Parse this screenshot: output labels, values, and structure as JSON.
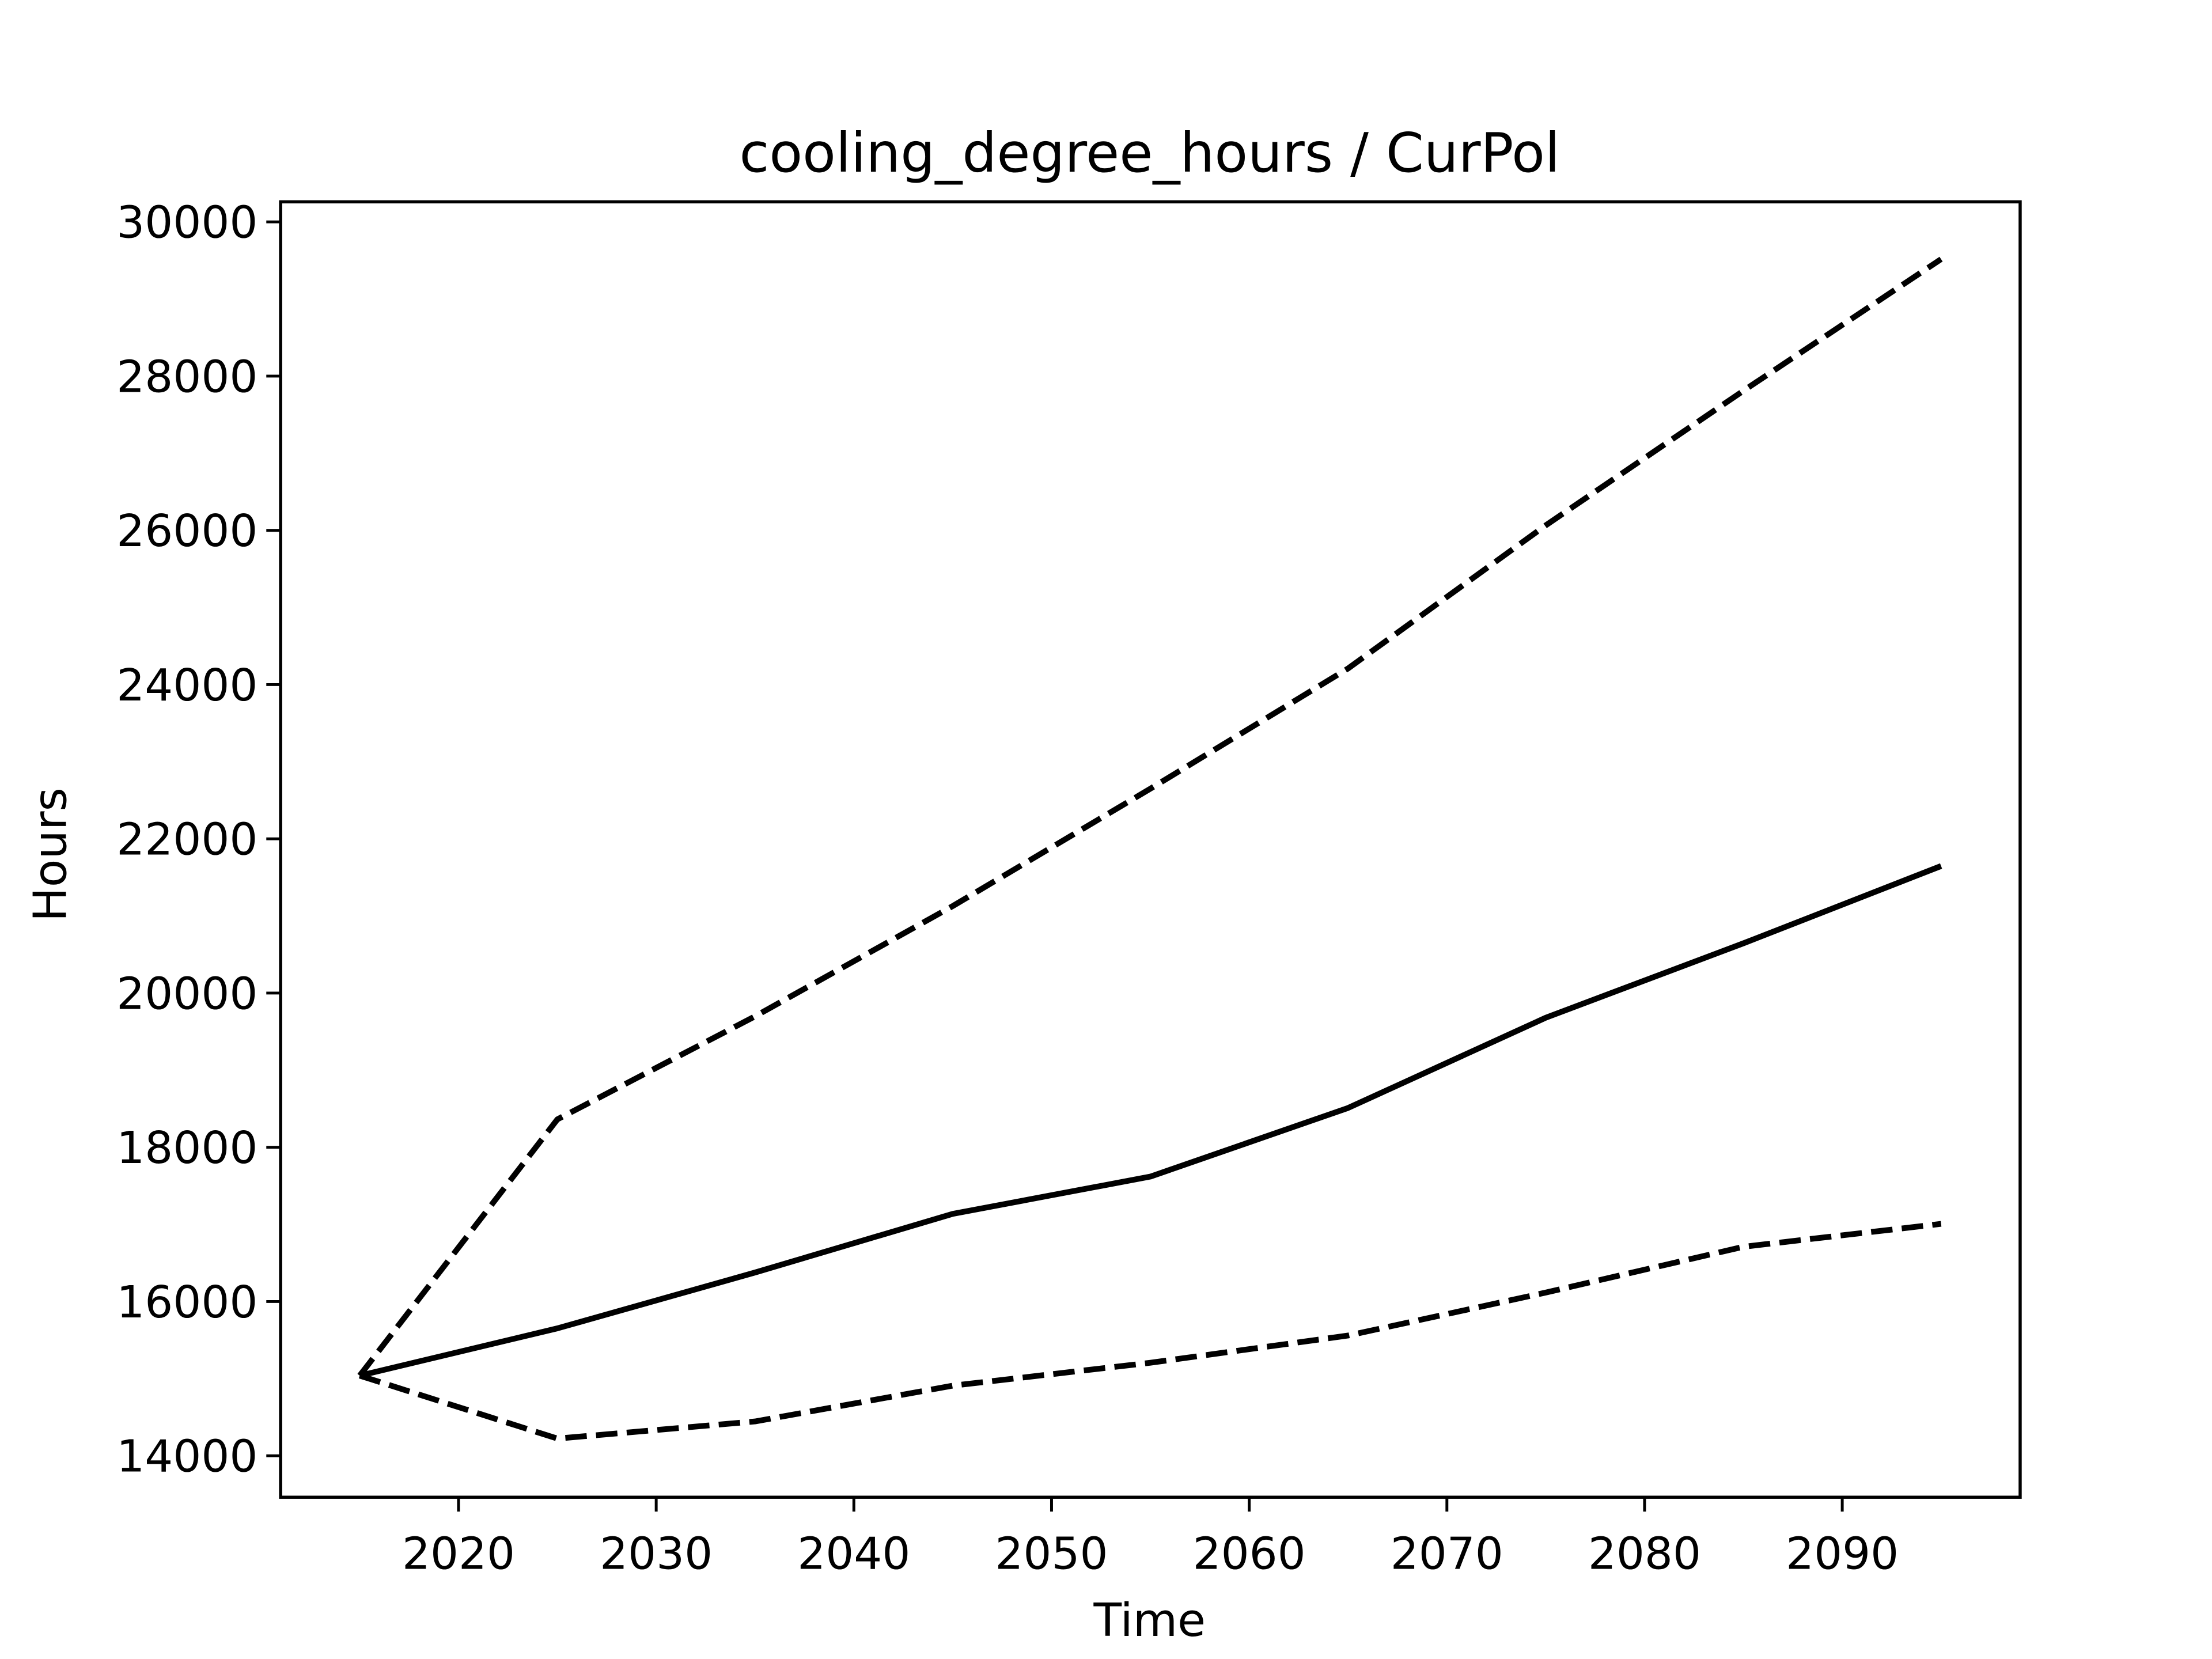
{
  "chart_data": {
    "type": "line",
    "title": "cooling_degree_hours / CurPol",
    "xlabel": "Time",
    "ylabel": "Hours",
    "x": [
      2015,
      2025,
      2035,
      2045,
      2055,
      2065,
      2075,
      2085,
      2095
    ],
    "series": [
      {
        "color": "#000000",
        "dashed": false,
        "values": [
          15039,
          15652,
          16376,
          17137,
          17620,
          18510,
          19680,
          20645,
          21647
        ]
      },
      {
        "color": "#000000",
        "dashed": true,
        "values": [
          15039,
          18362,
          19698,
          21128,
          22650,
          24209,
          26065,
          27810,
          29517
        ]
      },
      {
        "color": "#000000",
        "dashed": true,
        "values": [
          15039,
          14223,
          14445,
          14909,
          15206,
          15559,
          16116,
          16710,
          17007
        ]
      }
    ],
    "xlim": [
      2011,
      2099
    ],
    "ylim": [
      13462,
      30260
    ],
    "xticks": [
      2020,
      2030,
      2040,
      2050,
      2060,
      2070,
      2080,
      2090
    ],
    "yticks": [
      14000,
      16000,
      18000,
      20000,
      22000,
      24000,
      26000,
      28000,
      30000
    ],
    "grid": false
  }
}
